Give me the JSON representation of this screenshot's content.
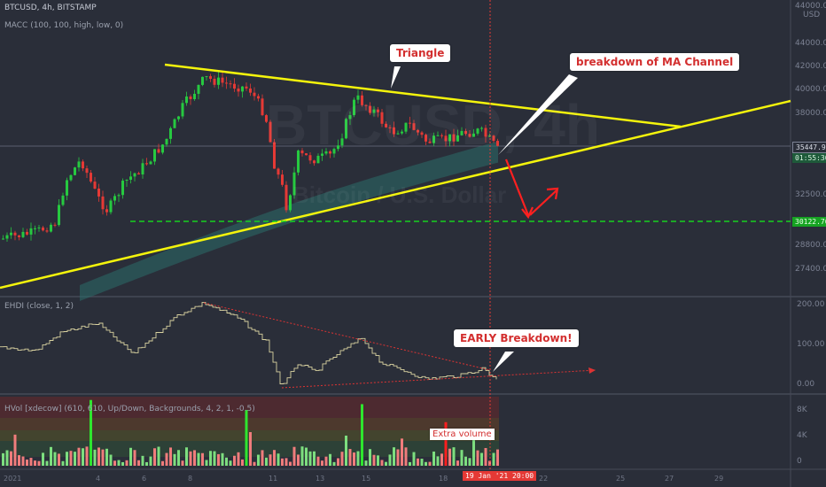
{
  "header": {
    "symbol": "BTCUSD, 4h, BITSTAMP",
    "indicator_1": "MACC (100, 100, high, low, 0)",
    "indicator_2": "EHDI (close, 1, 2)",
    "indicator_3": "HVol [xdecow] (610, 610, Up/Down, Backgrounds, 4, 2, 1, -0.5)"
  },
  "watermark": {
    "symbol": "BTCUSD, 4h",
    "name": "Bitcoin / U.S. Dollar"
  },
  "currency": "USD",
  "price_axis": [
    "44000.00",
    "42000.00",
    "40000.00",
    "38000.00",
    "35447.98",
    "32500.00",
    "30122.76",
    "28800.00",
    "27400.00"
  ],
  "price_tags": {
    "current_price": "35447.98",
    "countdown": "01:55:30",
    "support_level": "30122.76"
  },
  "osc_axis": [
    "200.00",
    "100.00",
    "0.00"
  ],
  "vol_axis": [
    "8K",
    "4K",
    "0"
  ],
  "time_axis": [
    "2021",
    "4",
    "6",
    "8",
    "11",
    "13",
    "15",
    "18",
    "22",
    "25",
    "27",
    "29"
  ],
  "cursor_date": {
    "date": "19 Jan '21",
    "time": "20:00"
  },
  "annotations": {
    "triangle": "Triangle",
    "ma_breakdown": "breakdown of MA Channel",
    "early_breakdown": "EARLY Breakdown!",
    "extra_volume": "Extra volume"
  },
  "colors": {
    "background": "#2a2e39",
    "up_candle": "#26c940",
    "down_candle": "#e53935",
    "trendline": "#f4f40c",
    "support_line": "#16d11f",
    "cursor_line": "#e53935",
    "callout_text": "#d32f2f",
    "channel_fill": "#2a6e6a"
  },
  "icons": {
    "pointer_arrows": "red-zigzag-arrows"
  }
}
